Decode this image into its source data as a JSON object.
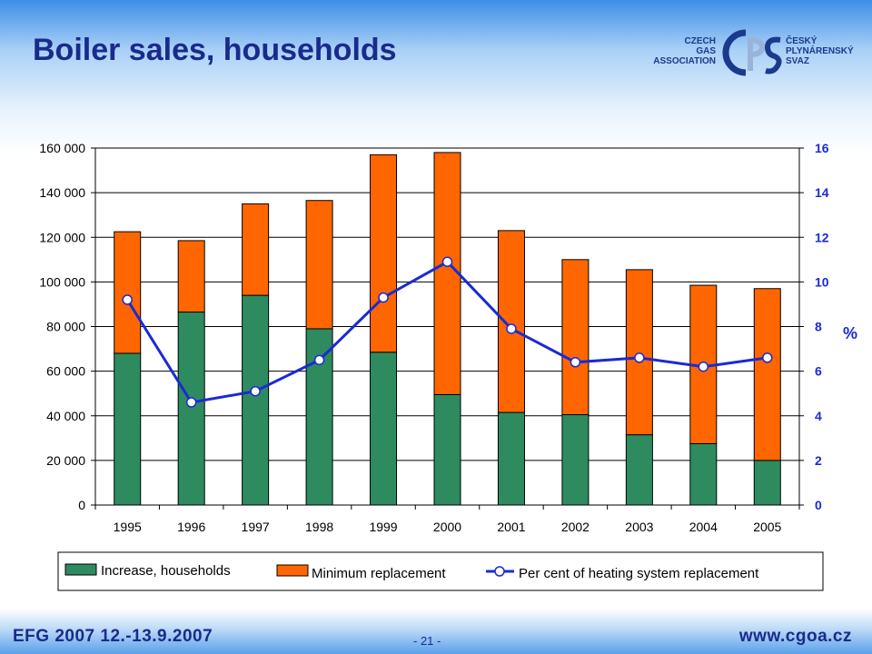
{
  "slide": {
    "title": "Boiler sales, households",
    "footer_event": "EFG 2007   12.-13.9.2007",
    "footer_url": "www.cgoa.cz",
    "page_number": "- 21 -"
  },
  "logo": {
    "left_text": [
      "CZECH",
      "GAS",
      "ASSOCIATION"
    ],
    "right_text": [
      "ČESKÝ",
      "PLYNÁRENSKÝ",
      "SVAZ"
    ],
    "mark": "CPS",
    "colors": {
      "dark": "#1a3a8c",
      "light": "#9ab3d8"
    }
  },
  "chart_data": {
    "type": "bar",
    "stacked": true,
    "categories": [
      "1995",
      "1996",
      "1997",
      "1998",
      "1999",
      "2000",
      "2001",
      "2002",
      "2003",
      "2004",
      "2005"
    ],
    "series": [
      {
        "name": "Increase, households",
        "kind": "bar",
        "color": "#2e8b5f",
        "values": [
          68000,
          86500,
          94000,
          79000,
          68500,
          49500,
          41500,
          40500,
          31500,
          27500,
          20000
        ]
      },
      {
        "name": "Minimum replacement",
        "kind": "bar",
        "color": "#ff6600",
        "values": [
          54500,
          32000,
          41000,
          57500,
          88500,
          108500,
          81500,
          69500,
          74000,
          71000,
          77000
        ]
      },
      {
        "name": "Per cent of heating system replacement",
        "kind": "line",
        "axis": "right",
        "color": "#1a2ad6",
        "values": [
          9.2,
          4.6,
          5.1,
          6.5,
          9.3,
          10.9,
          7.9,
          6.4,
          6.6,
          6.2,
          6.6
        ]
      }
    ],
    "y_left": {
      "min": 0,
      "max": 160000,
      "step": 20000,
      "tick_labels": [
        "0",
        "20 000",
        "40 000",
        "60 000",
        "80 000",
        "100 000",
        "120 000",
        "140 000",
        "160 000"
      ]
    },
    "y_right": {
      "min": 0,
      "max": 16,
      "step": 2,
      "label": "%",
      "tick_labels": [
        "0",
        "2",
        "4",
        "6",
        "8",
        "10",
        "12",
        "14",
        "16"
      ]
    },
    "grid": true,
    "legend_position": "bottom"
  }
}
